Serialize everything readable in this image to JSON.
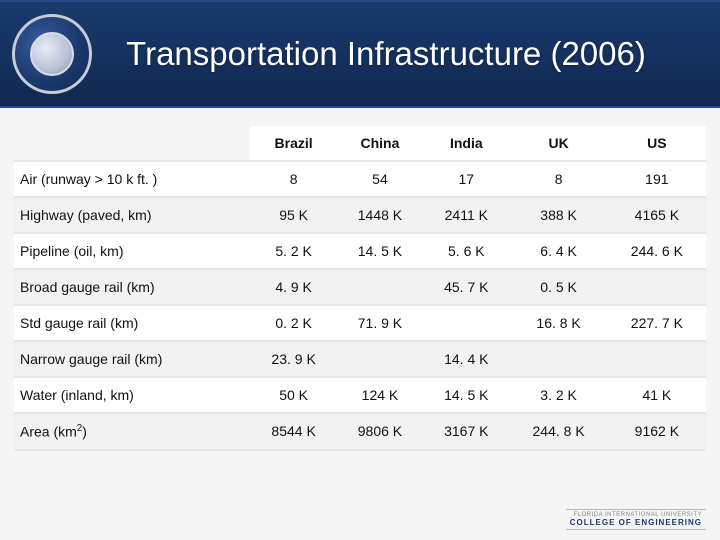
{
  "slide": {
    "title": "Transportation Infrastructure (2006)",
    "title_color": "#ffffff",
    "band_bg_top": "#1a3a6e",
    "band_bg_bottom": "#0f2850",
    "page_bg": "#f5f5f5"
  },
  "table": {
    "header_blank": "",
    "columns": [
      "Brazil",
      "China",
      "India",
      "UK",
      "US"
    ],
    "row_header_fontsize": 14,
    "cell_fontsize": 14,
    "border_color": "#e6e6e6",
    "row_odd_bg": "#ffffff",
    "row_even_bg": "#f2f2f2",
    "rows": [
      {
        "label": "Air (runway > 10 k ft. )",
        "cells": [
          "8",
          "54",
          "17",
          "8",
          "191"
        ]
      },
      {
        "label": "Highway (paved, km)",
        "cells": [
          "95 K",
          "1448 K",
          "2411 K",
          "388 K",
          "4165 K"
        ]
      },
      {
        "label": "Pipeline (oil, km)",
        "cells": [
          "5. 2 K",
          "14. 5 K",
          "5. 6 K",
          "6. 4 K",
          "244. 6 K"
        ]
      },
      {
        "label": "Broad gauge rail (km)",
        "cells": [
          "4. 9 K",
          "",
          "45. 7 K",
          "0. 5 K",
          ""
        ]
      },
      {
        "label": "Std gauge rail (km)",
        "cells": [
          "0. 2 K",
          "71. 9 K",
          "",
          "16. 8 K",
          "227. 7 K"
        ]
      },
      {
        "label": "Narrow gauge rail (km)",
        "cells": [
          "23. 9 K",
          "",
          "14. 4 K",
          "",
          ""
        ]
      },
      {
        "label": "Water (inland, km)",
        "cells": [
          "50 K",
          "124 K",
          "14. 5 K",
          "3. 2 K",
          "41 K"
        ]
      },
      {
        "label": "Area (km2)",
        "cells": [
          "8544 K",
          "9806 K",
          "3167 K",
          "244. 8 K",
          "9162 K"
        ],
        "label_has_sup": true
      }
    ]
  },
  "footer": {
    "line1": "FLORIDA INTERNATIONAL UNIVERSITY",
    "line2": "COLLEGE OF ENGINEERING"
  }
}
